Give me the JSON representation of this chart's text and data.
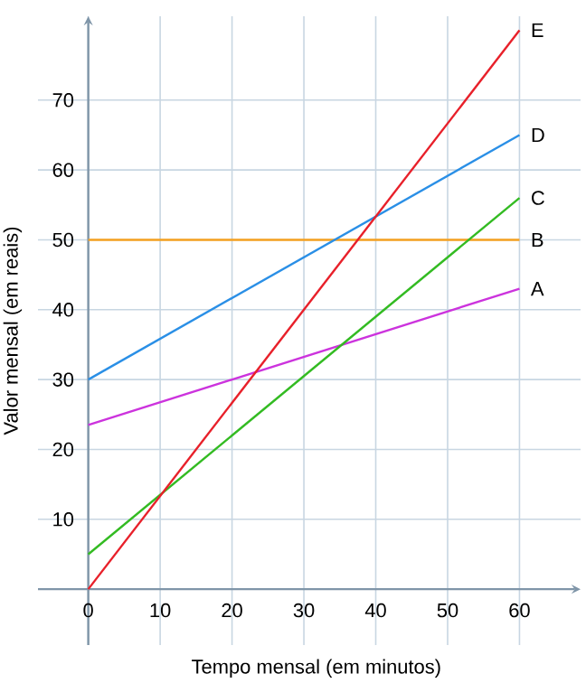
{
  "chart_data": {
    "type": "line",
    "xlabel": "Tempo mensal (em minutos)",
    "ylabel": "Valor mensal (em reais)",
    "xlim": [
      -7,
      68.5
    ],
    "ylim": [
      -8,
      82
    ],
    "xticks": [
      0,
      10,
      20,
      30,
      40,
      50,
      60
    ],
    "yticks": [
      10,
      20,
      30,
      40,
      50,
      60,
      70
    ],
    "grid": true,
    "marker": "none",
    "line_style": "solid",
    "x": [
      0,
      60
    ],
    "series": [
      {
        "name": "A",
        "color": "#cc33dd",
        "values": [
          23.5,
          43
        ]
      },
      {
        "name": "B",
        "color": "#f5a020",
        "values": [
          50,
          50
        ]
      },
      {
        "name": "C",
        "color": "#33bb22",
        "values": [
          5,
          56
        ]
      },
      {
        "name": "D",
        "color": "#2a8fe6",
        "values": [
          30,
          65
        ]
      },
      {
        "name": "E",
        "color": "#e8202a",
        "values": [
          0,
          80
        ]
      }
    ]
  }
}
